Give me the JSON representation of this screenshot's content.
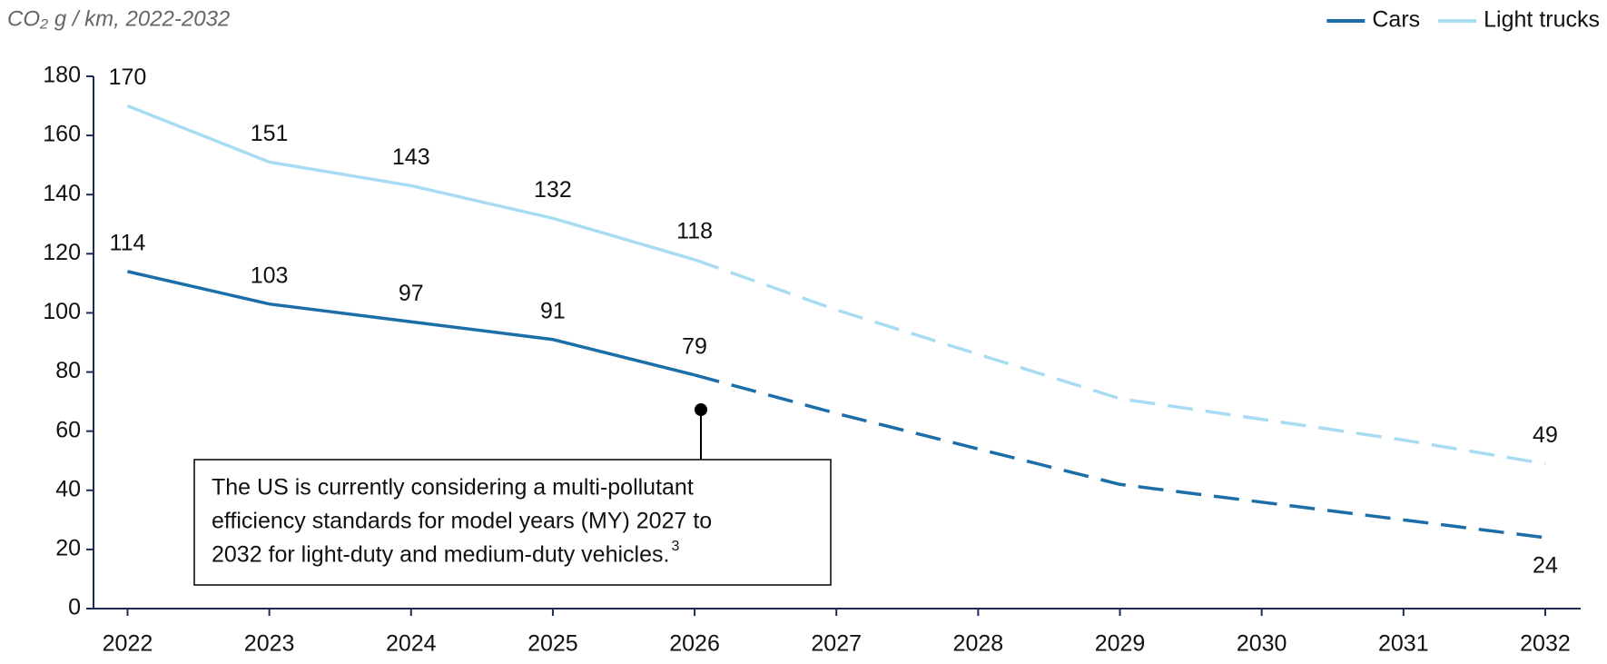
{
  "chart_data": {
    "type": "line",
    "subtitle": "CO₂ g / km, 2022-2032",
    "x": [
      2022,
      2023,
      2024,
      2025,
      2026,
      2027,
      2028,
      2029,
      2030,
      2031,
      2032
    ],
    "xlim": [
      2021.76,
      2032.25
    ],
    "xticks": [
      2022,
      2023,
      2024,
      2025,
      2026,
      2027,
      2028,
      2029,
      2030,
      2031,
      2032
    ],
    "ylim": [
      0,
      180
    ],
    "yticks": [
      0,
      20,
      40,
      60,
      80,
      100,
      120,
      140,
      160,
      180
    ],
    "projected_from": 2026,
    "legend": "top-right",
    "series": [
      {
        "name": "Cars",
        "color": "#1b6ea8",
        "values": [
          114,
          103,
          97,
          91,
          79,
          66,
          54,
          42,
          36,
          30,
          24
        ],
        "value_labels": [
          "114",
          "103",
          "97",
          "91",
          "79",
          null,
          null,
          null,
          null,
          null,
          "24"
        ]
      },
      {
        "name": "Light trucks",
        "color": "#a8dcf2",
        "values": [
          170,
          151,
          143,
          132,
          118,
          101,
          86,
          71,
          64,
          57,
          49
        ],
        "value_labels": [
          "170",
          "151",
          "143",
          "132",
          "118",
          null,
          null,
          null,
          null,
          null,
          "49"
        ]
      }
    ],
    "annotation": {
      "lines": [
        "The US is currently considering a multi-pollutant",
        "efficiency standards for model years (MY) 2027 to",
        "2032 for light-duty and medium-duty vehicles."
      ],
      "footnote": "3"
    }
  }
}
